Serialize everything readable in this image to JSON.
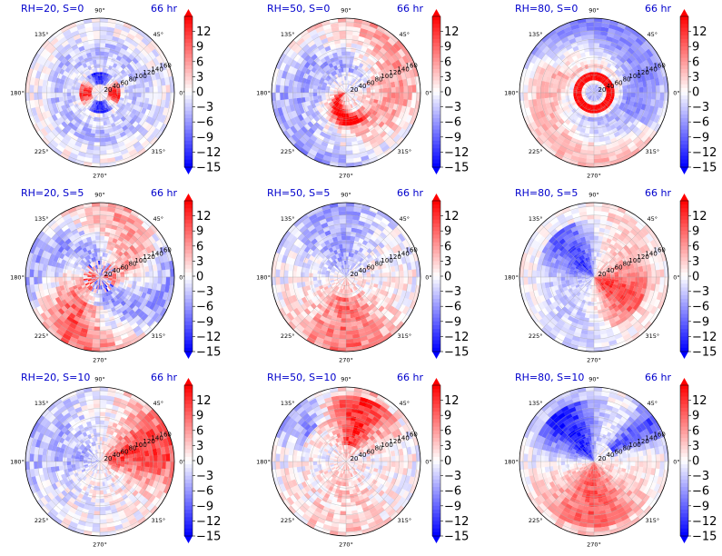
{
  "chart_data": {
    "type": "polar-heatmap-grid",
    "colormap": "bwr",
    "colors": {
      "low": "#0000ff",
      "mid": "#ffffff",
      "high": "#ff0000",
      "title_text": "#0000cc"
    },
    "angle_labels": [
      "0°",
      "45°",
      "90°",
      "135°",
      "180°",
      "225°",
      "270°",
      "315°"
    ],
    "radial_ticks": [
      "20",
      "40",
      "60",
      "80",
      "100",
      "120",
      "140",
      "160"
    ],
    "colorbar": {
      "ticks": [
        "12",
        "9",
        "6",
        "3",
        "0",
        "−3",
        "−6",
        "−9",
        "−12",
        "−15"
      ],
      "vmin": -15,
      "vmax": 15,
      "extend": "both"
    },
    "panels": [
      {
        "id": "rh20-s0",
        "title": "RH=20, S=0",
        "time": "66 hr",
        "pattern": "weak-ring"
      },
      {
        "id": "rh50-s0",
        "title": "RH=50, S=0",
        "time": "66 hr",
        "pattern": "spiral"
      },
      {
        "id": "rh80-s0",
        "title": "RH=80, S=0",
        "time": "66 hr",
        "pattern": "strong-ring"
      },
      {
        "id": "rh20-s5",
        "title": "RH=20, S=5",
        "time": "66 hr",
        "pattern": "weak-mixed"
      },
      {
        "id": "rh50-s5",
        "title": "RH=50, S=5",
        "time": "66 hr",
        "pattern": "south-red"
      },
      {
        "id": "rh80-s5",
        "title": "RH=80, S=5",
        "time": "66 hr",
        "pattern": "dipole-east"
      },
      {
        "id": "rh20-s10",
        "title": "RH=20, S=10",
        "time": "66 hr",
        "pattern": "east-red"
      },
      {
        "id": "rh50-s10",
        "title": "RH=50, S=10",
        "time": "66 hr",
        "pattern": "north-red"
      },
      {
        "id": "rh80-s10",
        "title": "RH=80, S=10",
        "time": "66 hr",
        "pattern": "dipole-ne"
      }
    ]
  }
}
